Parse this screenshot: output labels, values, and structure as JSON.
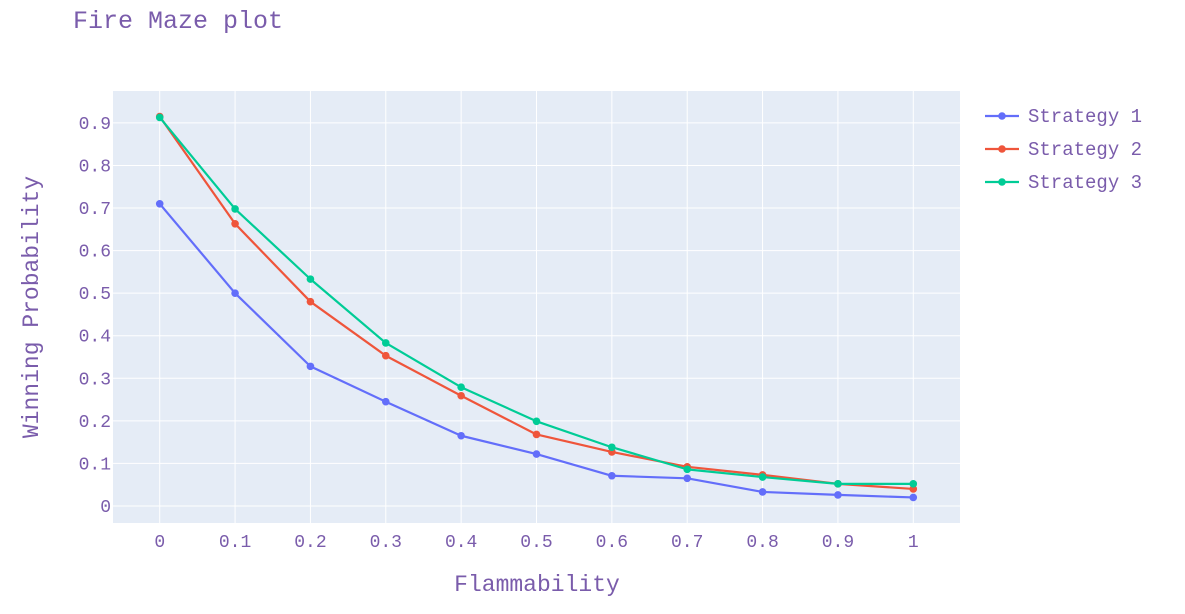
{
  "colors": {
    "plot_bg": "#e5ecf6",
    "grid": "#ffffff",
    "text": "#7a5cab",
    "series": [
      "#636efa",
      "#ef553b",
      "#00cc96"
    ]
  },
  "chart_data": {
    "type": "line",
    "title": "Fire Maze plot",
    "xlabel": "Flammability",
    "ylabel": "Winning Probability",
    "x": [
      0,
      0.1,
      0.2,
      0.3,
      0.4,
      0.5,
      0.6,
      0.7,
      0.8,
      0.9,
      1
    ],
    "x_tick_labels": [
      "0",
      "0.1",
      "0.2",
      "0.3",
      "0.4",
      "0.5",
      "0.6",
      "0.7",
      "0.8",
      "0.9",
      "1"
    ],
    "y_tick_values": [
      0,
      0.1,
      0.2,
      0.3,
      0.4,
      0.5,
      0.6,
      0.7,
      0.8,
      0.9
    ],
    "y_tick_labels": [
      "0",
      "0.1",
      "0.2",
      "0.3",
      "0.4",
      "0.5",
      "0.6",
      "0.7",
      "0.8",
      "0.9"
    ],
    "xlim": [
      -0.062,
      1.062
    ],
    "ylim": [
      -0.04,
      0.975
    ],
    "grid": true,
    "legend_position": "top-right-outside",
    "series": [
      {
        "name": "Strategy 1",
        "values": [
          0.71,
          0.5,
          0.328,
          0.245,
          0.165,
          0.122,
          0.071,
          0.065,
          0.033,
          0.026,
          0.02
        ]
      },
      {
        "name": "Strategy 2",
        "values": [
          0.915,
          0.663,
          0.48,
          0.353,
          0.259,
          0.168,
          0.127,
          0.092,
          0.073,
          0.052,
          0.04
        ]
      },
      {
        "name": "Strategy 3",
        "values": [
          0.913,
          0.698,
          0.533,
          0.383,
          0.279,
          0.199,
          0.138,
          0.086,
          0.068,
          0.052,
          0.052
        ]
      }
    ]
  }
}
